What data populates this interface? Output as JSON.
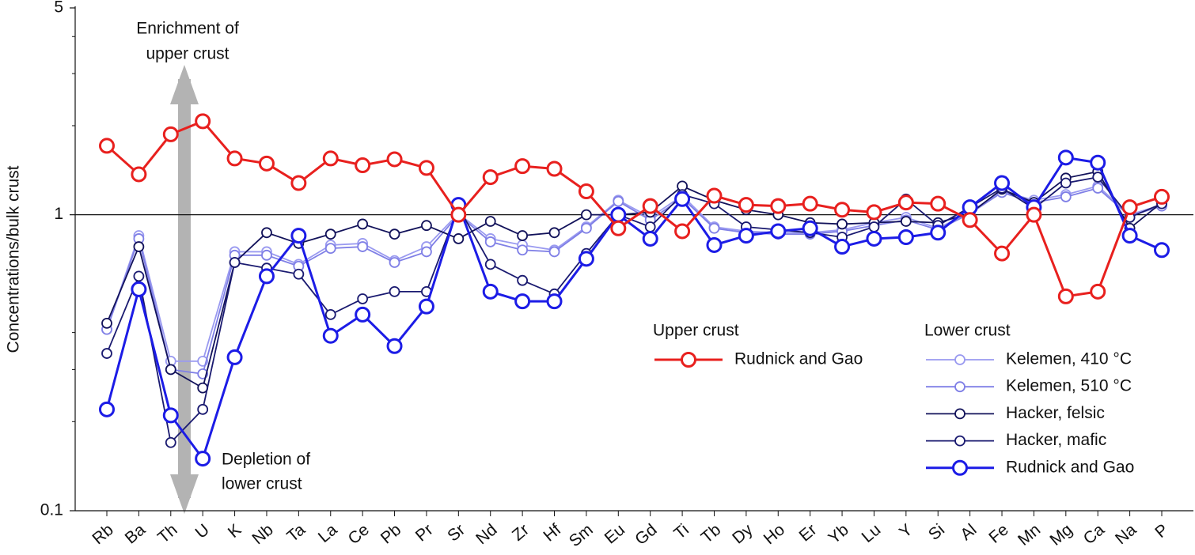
{
  "chart_data": {
    "type": "line",
    "y_label": "Concentrations/bulk crust",
    "log_y": true,
    "ylim": [
      0.1,
      5
    ],
    "yticks": [
      0.1,
      1,
      5
    ],
    "reference_line": 1,
    "categories": [
      "Rb",
      "Ba",
      "Th",
      "U",
      "K",
      "Nb",
      "Ta",
      "La",
      "Ce",
      "Pb",
      "Pr",
      "Sr",
      "Nd",
      "Zr",
      "Hf",
      "Sm",
      "Eu",
      "Gd",
      "Ti",
      "Tb",
      "Dy",
      "Ho",
      "Er",
      "Yb",
      "Lu",
      "Y",
      "Si",
      "Al",
      "Fe",
      "Mn",
      "Mg",
      "Ca",
      "Na",
      "P"
    ],
    "annotations": {
      "enrichment": [
        "Enrichment of",
        "upper crust"
      ],
      "depletion": [
        "Depletion of",
        "lower crust"
      ]
    },
    "series_groups": [
      {
        "name": "Lower crust",
        "series": [
          {
            "name": "Kelemen, 410 °C",
            "color": "#9a9af0",
            "values": [
              0.41,
              0.85,
              0.32,
              0.32,
              0.75,
              0.75,
              0.68,
              0.79,
              0.8,
              0.7,
              0.78,
              1.01,
              0.83,
              0.79,
              0.76,
              0.91,
              1.12,
              0.98,
              1.16,
              0.91,
              0.88,
              0.87,
              0.87,
              0.89,
              0.94,
              0.98,
              0.9,
              1.02,
              1.2,
              1.12,
              1.17,
              1.25,
              1.0,
              1.08
            ]
          },
          {
            "name": "Kelemen, 510 °C",
            "color": "#7f7fe6",
            "values": [
              0.41,
              0.83,
              0.3,
              0.29,
              0.73,
              0.73,
              0.67,
              0.77,
              0.78,
              0.69,
              0.75,
              1.0,
              0.81,
              0.76,
              0.75,
              0.9,
              1.11,
              0.96,
              1.14,
              0.9,
              0.87,
              0.86,
              0.86,
              0.88,
              0.92,
              0.96,
              0.89,
              1.01,
              1.19,
              1.1,
              1.15,
              1.23,
              0.99,
              1.07
            ]
          },
          {
            "name": "Hacker, felsic",
            "color": "#12125a",
            "values": [
              0.43,
              0.78,
              0.3,
              0.26,
              0.69,
              0.87,
              0.8,
              0.86,
              0.93,
              0.86,
              0.92,
              0.83,
              0.95,
              0.85,
              0.87,
              1.0,
              1.0,
              1.02,
              1.25,
              1.12,
              1.04,
              1.0,
              0.94,
              0.93,
              0.94,
              0.95,
              0.94,
              1.01,
              1.22,
              1.1,
              1.33,
              1.4,
              0.9,
              1.1
            ]
          },
          {
            "name": "Hacker, mafic",
            "color": "#1a1a70",
            "values": [
              0.34,
              0.62,
              0.17,
              0.22,
              0.69,
              0.66,
              0.63,
              0.46,
              0.52,
              0.55,
              0.55,
              1.06,
              0.68,
              0.6,
              0.54,
              0.74,
              1.0,
              0.91,
              1.17,
              1.09,
              0.91,
              0.89,
              0.87,
              0.84,
              0.91,
              1.13,
              0.92,
              1.06,
              1.23,
              1.05,
              1.28,
              1.34,
              0.98,
              1.09
            ]
          },
          {
            "name": "Rudnick and Gao",
            "color": "#1c1ce6",
            "emphasis": true,
            "values": [
              0.22,
              0.56,
              0.21,
              0.15,
              0.33,
              0.62,
              0.85,
              0.39,
              0.46,
              0.36,
              0.49,
              1.08,
              0.55,
              0.51,
              0.51,
              0.71,
              1.0,
              0.83,
              1.13,
              0.79,
              0.85,
              0.88,
              0.9,
              0.78,
              0.83,
              0.84,
              0.87,
              1.06,
              1.28,
              1.06,
              1.56,
              1.5,
              0.85,
              0.76
            ]
          }
        ]
      },
      {
        "name": "Upper crust",
        "series": [
          {
            "name": "Rudnick and Gao",
            "color": "#e8201e",
            "emphasis": true,
            "values": [
              1.71,
              1.37,
              1.87,
              2.07,
              1.55,
              1.49,
              1.28,
              1.55,
              1.47,
              1.54,
              1.44,
              1.0,
              1.34,
              1.46,
              1.43,
              1.2,
              0.9,
              1.07,
              0.88,
              1.16,
              1.08,
              1.07,
              1.09,
              1.04,
              1.02,
              1.1,
              1.09,
              0.96,
              0.74,
              1.0,
              0.53,
              0.55,
              1.06,
              1.15
            ]
          }
        ]
      }
    ]
  }
}
